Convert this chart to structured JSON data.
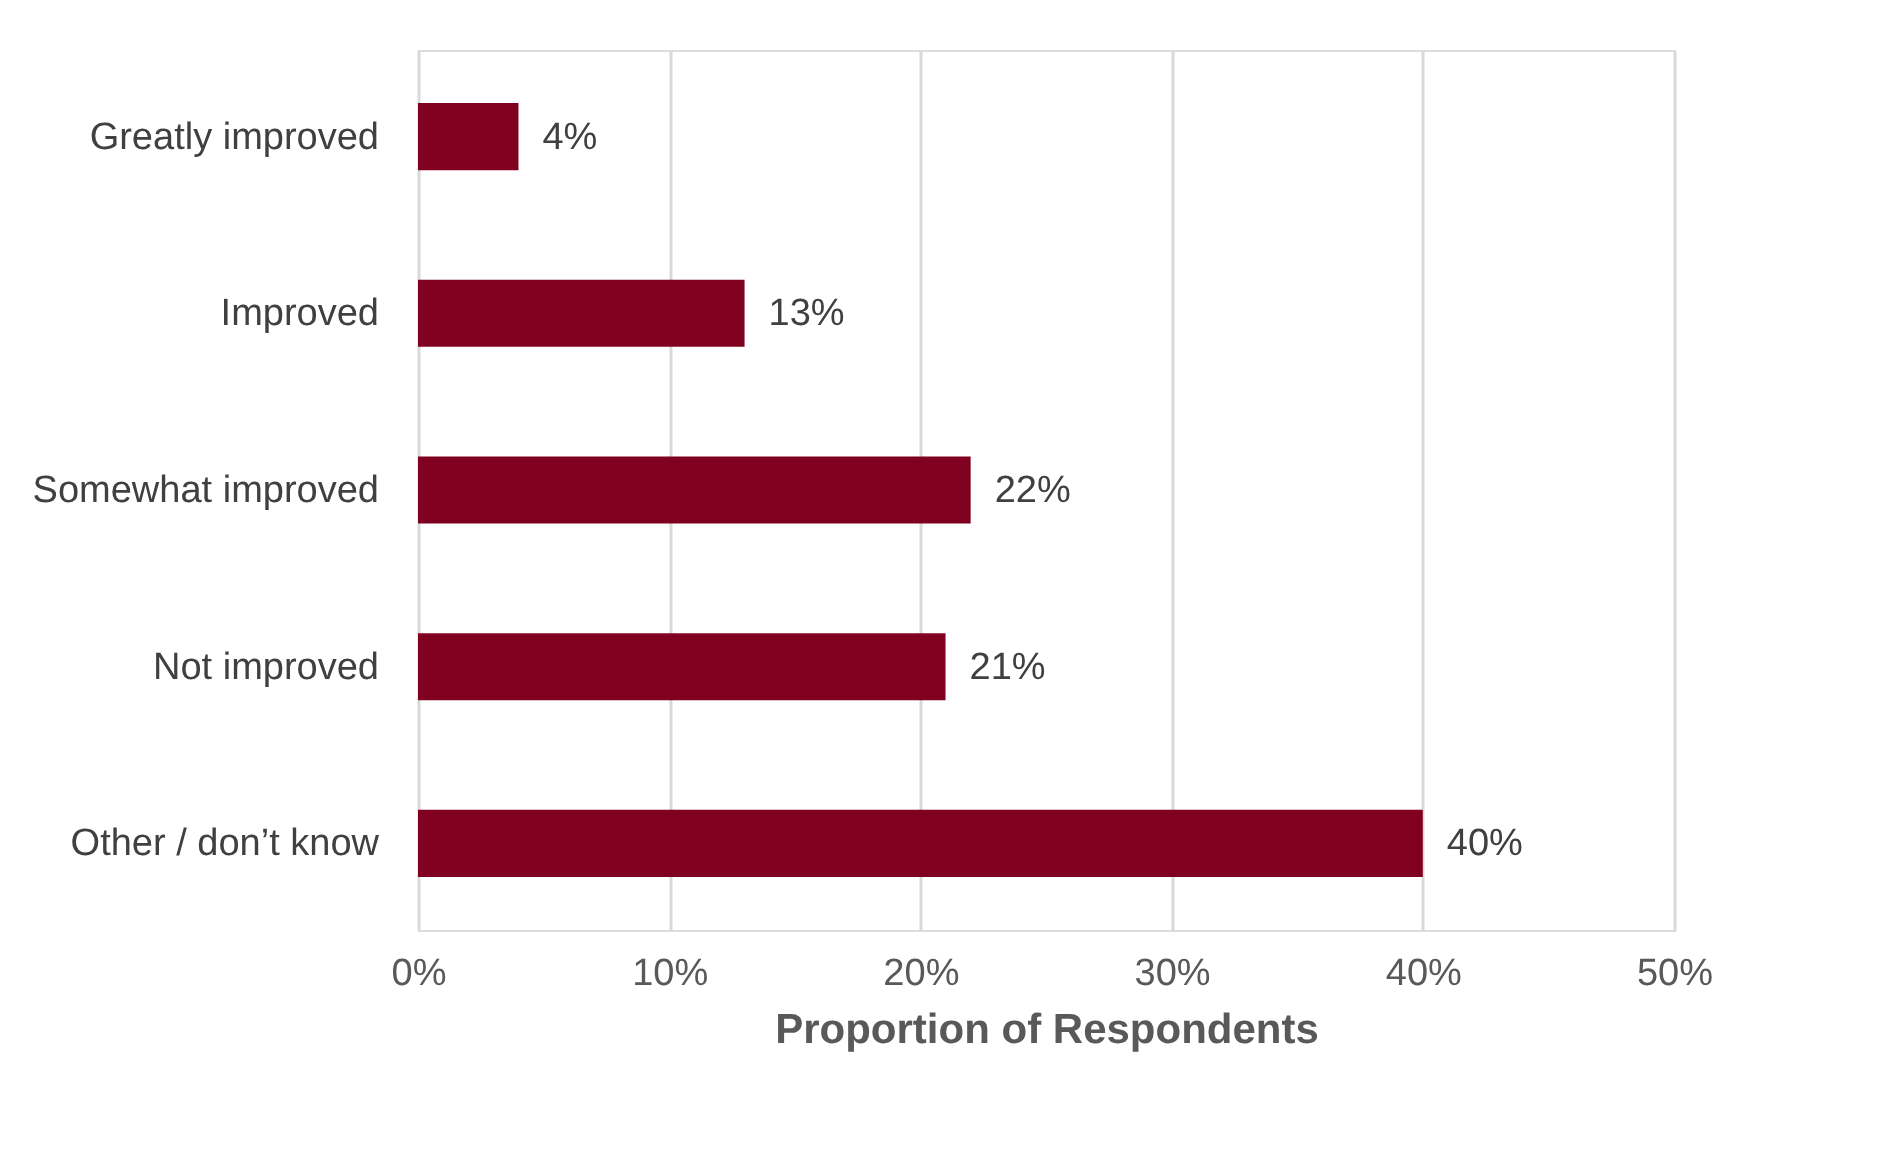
{
  "chart_data": {
    "type": "bar",
    "orientation": "horizontal",
    "xlabel": "Proportion of Respondents",
    "categories": [
      "Greatly improved",
      "Improved",
      "Somewhat improved",
      "Not improved",
      "Other / don’t know"
    ],
    "values": [
      4,
      13,
      22,
      21,
      40
    ],
    "value_labels": [
      "4%",
      "13%",
      "22%",
      "21%",
      "40%"
    ],
    "color": "#800020",
    "xlim": [
      0,
      50
    ],
    "xticks": [
      {
        "value": 0,
        "label": "0%"
      },
      {
        "value": 10,
        "label": "10%"
      },
      {
        "value": 20,
        "label": "20%"
      },
      {
        "value": 30,
        "label": "30%"
      },
      {
        "value": 40,
        "label": "40%"
      },
      {
        "value": 50,
        "label": "50%"
      }
    ],
    "grid": "x"
  }
}
